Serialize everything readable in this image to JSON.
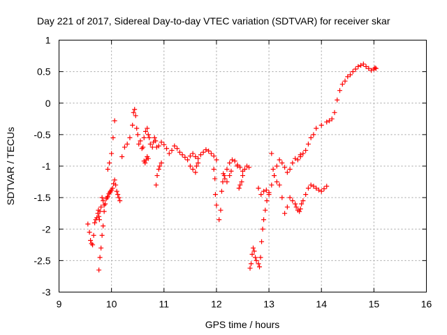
{
  "chart_data": {
    "type": "scatter",
    "title": "Day 221 of 2017, Sidereal Day-to-day VTEC variation (SDTVAR) for receiver skar",
    "xlabel": "GPS time / hours",
    "ylabel": "SDTVAR / TECUs",
    "xlim": [
      9,
      16
    ],
    "ylim": [
      -3,
      1
    ],
    "xticks": [
      9,
      10,
      11,
      12,
      13,
      14,
      15,
      16
    ],
    "xtick_labels": [
      "9",
      "10",
      "11",
      "12",
      "13",
      "14",
      "15",
      "16"
    ],
    "yticks": [
      1,
      0.5,
      0,
      -0.5,
      -1,
      -1.5,
      -2,
      -2.5,
      -3
    ],
    "ytick_labels": [
      "1",
      "0.5",
      "0",
      "-0.5",
      "-1",
      "-1.5",
      "-2",
      "-2.5",
      "-3"
    ],
    "grid": true,
    "marker": "+",
    "marker_color": "#ff0000",
    "series": [
      {
        "name": "SDTVAR",
        "x": [
          9.55,
          9.58,
          9.6,
          9.62,
          9.64,
          9.66,
          9.68,
          9.7,
          9.72,
          9.74,
          9.75,
          9.76,
          9.77,
          9.78,
          9.8,
          9.82,
          9.84,
          9.86,
          9.88,
          9.9,
          9.92,
          9.93,
          9.95,
          9.97,
          9.98,
          10.0,
          10.02,
          10.04,
          10.06,
          10.08,
          10.1,
          10.12,
          10.14,
          10.16,
          9.76,
          9.78,
          9.8,
          9.82,
          9.84,
          9.86,
          9.93,
          9.96,
          10.0,
          10.03,
          10.06,
          10.2,
          10.25,
          10.3,
          10.35,
          10.4,
          10.42,
          10.44,
          10.46,
          10.48,
          10.5,
          10.52,
          10.55,
          10.58,
          10.6,
          10.62,
          10.65,
          10.68,
          10.7,
          10.72,
          10.74,
          10.78,
          10.8,
          10.82,
          10.84,
          10.86,
          10.9,
          10.95,
          11.0,
          11.05,
          11.1,
          11.15,
          11.2,
          11.25,
          11.3,
          11.35,
          11.4,
          11.45,
          11.5,
          11.55,
          11.6,
          11.65,
          11.7,
          11.75,
          11.8,
          11.85,
          11.9,
          11.95,
          12.0,
          10.62,
          10.64,
          10.66,
          10.68,
          10.7,
          10.85,
          10.87,
          10.9,
          10.92,
          10.95,
          11.5,
          11.55,
          11.6,
          11.62,
          11.65,
          11.95,
          11.97,
          11.98,
          12.0,
          12.05,
          12.08,
          12.1,
          12.12,
          12.15,
          12.2,
          12.25,
          12.3,
          12.35,
          12.4,
          12.45,
          12.5,
          12.13,
          12.16,
          12.2,
          12.25,
          12.28,
          12.4,
          12.43,
          12.45,
          12.48,
          12.5,
          12.54,
          12.58,
          12.62,
          12.64,
          12.66,
          12.68,
          12.7,
          12.72,
          12.74,
          12.76,
          12.8,
          12.82,
          12.84,
          12.86,
          12.88,
          12.9,
          12.93,
          12.96,
          13.0,
          13.05,
          13.1,
          13.15,
          13.2,
          13.25,
          13.3,
          13.35,
          13.4,
          13.45,
          13.5,
          13.55,
          13.6,
          13.05,
          13.08,
          13.1,
          13.15,
          13.2,
          12.8,
          12.85,
          12.9,
          12.95,
          13.0,
          13.25,
          13.3,
          13.35,
          13.4,
          13.45,
          13.5,
          13.52,
          13.55,
          13.58,
          13.6,
          13.62,
          13.65,
          13.7,
          13.75,
          13.8,
          13.85,
          13.9,
          13.95,
          14.0,
          14.05,
          14.1,
          13.6,
          13.65,
          13.7,
          13.75,
          13.8,
          13.85,
          13.9,
          14.0,
          14.1,
          14.15,
          14.2,
          14.25,
          14.3,
          14.35,
          14.4,
          14.45,
          14.5,
          14.55,
          14.6,
          14.65,
          14.7,
          14.75,
          14.8,
          14.85,
          14.9,
          14.95,
          15.0,
          15.02,
          15.04
        ],
        "values": [
          -1.92,
          -2.05,
          -2.18,
          -2.23,
          -2.25,
          -2.1,
          -1.9,
          -1.85,
          -1.82,
          -1.75,
          -1.7,
          -1.8,
          -1.85,
          -1.72,
          -1.65,
          -1.5,
          -1.55,
          -1.62,
          -1.6,
          -1.52,
          -1.5,
          -1.48,
          -1.44,
          -1.42,
          -1.4,
          -1.38,
          -1.35,
          -1.28,
          -1.22,
          -1.3,
          -1.4,
          -1.45,
          -1.5,
          -1.55,
          -2.65,
          -2.45,
          -2.3,
          -2.1,
          -1.95,
          -1.72,
          -1.05,
          -0.95,
          -0.8,
          -0.55,
          -0.28,
          -0.85,
          -0.7,
          -0.65,
          -0.55,
          -0.35,
          -0.15,
          -0.1,
          -0.2,
          -0.4,
          -0.5,
          -0.65,
          -0.6,
          -0.72,
          -0.7,
          -0.55,
          -0.45,
          -0.4,
          -0.5,
          -0.55,
          -0.65,
          -0.7,
          -0.62,
          -0.55,
          -0.6,
          -0.7,
          -0.68,
          -0.62,
          -0.66,
          -0.72,
          -0.8,
          -0.75,
          -0.68,
          -0.72,
          -0.78,
          -0.82,
          -0.86,
          -0.9,
          -0.84,
          -0.8,
          -0.85,
          -0.88,
          -0.82,
          -0.78,
          -0.74,
          -0.76,
          -0.8,
          -0.84,
          -0.9,
          -0.92,
          -0.95,
          -0.9,
          -0.85,
          -0.88,
          -1.3,
          -1.15,
          -1.05,
          -1.0,
          -0.95,
          -1.0,
          -1.05,
          -1.1,
          -1.0,
          -0.95,
          -1.05,
          -1.2,
          -1.45,
          -1.62,
          -1.85,
          -1.7,
          -1.4,
          -1.25,
          -1.15,
          -1.05,
          -0.95,
          -0.9,
          -0.92,
          -0.98,
          -1.02,
          -1.08,
          -1.12,
          -1.2,
          -1.25,
          -1.15,
          -1.08,
          -1.0,
          -1.35,
          -1.3,
          -1.25,
          -1.15,
          -1.05,
          -1.0,
          -1.02,
          -2.62,
          -2.55,
          -2.4,
          -2.3,
          -2.35,
          -2.45,
          -2.5,
          -2.55,
          -2.6,
          -2.45,
          -2.2,
          -2.0,
          -1.85,
          -1.7,
          -1.55,
          -1.45,
          -1.3,
          -1.15,
          -1.0,
          -0.9,
          -0.95,
          -1.02,
          -1.1,
          -1.05,
          -0.95,
          -0.88,
          -0.9,
          -0.85,
          -0.8,
          -1.05,
          -1.15,
          -1.25,
          -1.3,
          -1.35,
          -1.45,
          -1.4,
          -1.38,
          -1.42,
          -1.5,
          -1.75,
          -1.65,
          -1.5,
          -1.55,
          -1.6,
          -1.65,
          -1.7,
          -1.72,
          -1.68,
          -1.6,
          -1.55,
          -1.45,
          -1.35,
          -1.3,
          -1.32,
          -1.35,
          -1.38,
          -1.4,
          -1.36,
          -1.32,
          -0.82,
          -0.8,
          -0.75,
          -0.65,
          -0.55,
          -0.5,
          -0.4,
          -0.35,
          -0.3,
          -0.28,
          -0.25,
          -0.15,
          0.05,
          0.2,
          0.3,
          0.35,
          0.42,
          0.45,
          0.5,
          0.54,
          0.58,
          0.6,
          0.62,
          0.58,
          0.55,
          0.52,
          0.54,
          0.56,
          0.55
        ]
      }
    ]
  }
}
